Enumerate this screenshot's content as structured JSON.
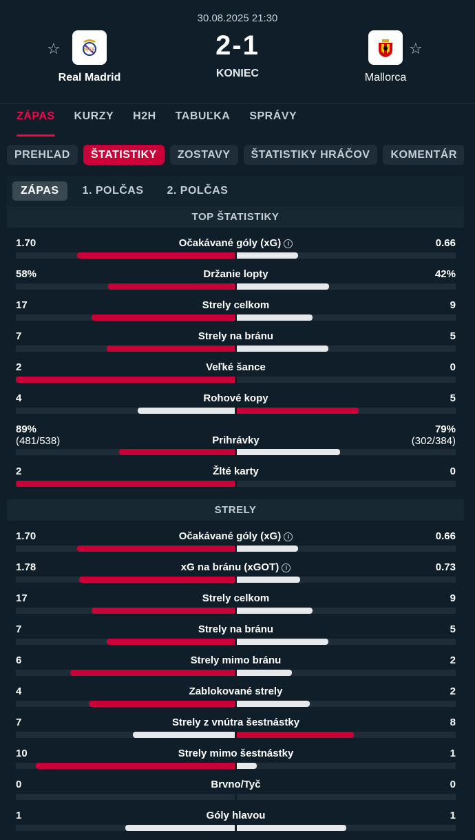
{
  "match": {
    "datetime": "30.08.2025 21:30",
    "score": "2-1",
    "status": "KONIEC",
    "home": {
      "name": "Real Madrid",
      "logo": "real-madrid-crest"
    },
    "away": {
      "name": "Mallorca",
      "logo": "mallorca-crest"
    }
  },
  "main_tabs": [
    "ZÁPAS",
    "KURZY",
    "H2H",
    "TABUĽKA",
    "SPRÁVY"
  ],
  "sub_tabs": [
    "PREHĽAD",
    "ŠTATISTIKY",
    "ZOSTAVY",
    "ŠTATISTIKY HRÁČOV",
    "KOMENTÁR"
  ],
  "period_tabs": [
    "ZÁPAS",
    "1. POLČAS",
    "2. POLČAS"
  ],
  "colors": {
    "accent": "#ff0046",
    "home_bar_winner": "#c80037",
    "bar_loser": "#e6e8ea",
    "background": "#0f1e28"
  },
  "sections": [
    {
      "title": "TOP ŠTATISTIKY",
      "stats": [
        {
          "label": "Očakávané góly (xG)",
          "home": "1.70",
          "away": "0.66",
          "home_num": 1.7,
          "away_num": 0.66,
          "info": true
        },
        {
          "label": "Držanie lopty",
          "home": "58%",
          "away": "42%",
          "home_num": 58,
          "away_num": 42
        },
        {
          "label": "Strely celkom",
          "home": "17",
          "away": "9",
          "home_num": 17,
          "away_num": 9
        },
        {
          "label": "Strely na bránu",
          "home": "7",
          "away": "5",
          "home_num": 7,
          "away_num": 5
        },
        {
          "label": "Veľké šance",
          "home": "2",
          "away": "0",
          "home_num": 2,
          "away_num": 0
        },
        {
          "label": "Rohové kopy",
          "home": "4",
          "away": "5",
          "home_num": 4,
          "away_num": 5
        },
        {
          "label": "Prihrávky",
          "home": "89%",
          "home_sub": "(481/538)",
          "away": "79%",
          "away_sub": "(302/384)",
          "home_num": 89,
          "away_num": 79
        },
        {
          "label": "Žlté karty",
          "home": "2",
          "away": "0",
          "home_num": 2,
          "away_num": 0
        }
      ]
    },
    {
      "title": "STRELY",
      "stats": [
        {
          "label": "Očakávané góly (xG)",
          "home": "1.70",
          "away": "0.66",
          "home_num": 1.7,
          "away_num": 0.66,
          "info": true
        },
        {
          "label": "xG na bránu (xGOT)",
          "home": "1.78",
          "away": "0.73",
          "home_num": 1.78,
          "away_num": 0.73,
          "info": true
        },
        {
          "label": "Strely celkom",
          "home": "17",
          "away": "9",
          "home_num": 17,
          "away_num": 9
        },
        {
          "label": "Strely na bránu",
          "home": "7",
          "away": "5",
          "home_num": 7,
          "away_num": 5
        },
        {
          "label": "Strely mimo bránu",
          "home": "6",
          "away": "2",
          "home_num": 6,
          "away_num": 2
        },
        {
          "label": "Zablokované strely",
          "home": "4",
          "away": "2",
          "home_num": 4,
          "away_num": 2
        },
        {
          "label": "Strely z vnútra šestnástky",
          "home": "7",
          "away": "8",
          "home_num": 7,
          "away_num": 8
        },
        {
          "label": "Strely mimo šestnástky",
          "home": "10",
          "away": "1",
          "home_num": 10,
          "away_num": 1
        },
        {
          "label": "Brvno/Tyč",
          "home": "0",
          "away": "0",
          "home_num": 0,
          "away_num": 0
        },
        {
          "label": "Góly hlavou",
          "home": "1",
          "away": "1",
          "home_num": 1,
          "away_num": 1
        }
      ]
    }
  ]
}
